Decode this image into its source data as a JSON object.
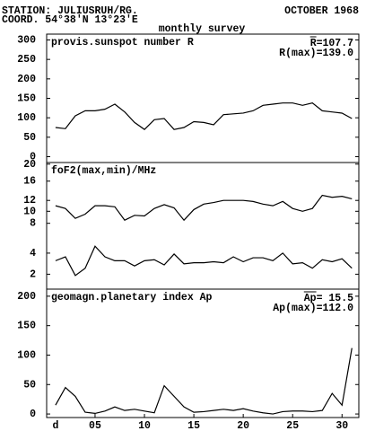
{
  "header": {
    "station": "STATION: JULIUSRUH/RG.",
    "coord": "COORD. 54°38'N 13°23'E",
    "month": "OCTOBER 1968",
    "survey": "monthly survey"
  },
  "chart_data": [
    {
      "type": "line",
      "title": "provis.sunspot number R",
      "annotations": [
        "R=107.7",
        "R(max)=139.0"
      ],
      "x": [
        1,
        2,
        3,
        4,
        5,
        6,
        7,
        8,
        9,
        10,
        11,
        12,
        13,
        14,
        15,
        16,
        17,
        18,
        19,
        20,
        21,
        22,
        23,
        24,
        25,
        26,
        27,
        28,
        29,
        30,
        31
      ],
      "xlim": [
        0.1,
        31.7
      ],
      "ylim": [
        -15,
        315
      ],
      "yticks": [
        0,
        50,
        100,
        150,
        200,
        250,
        300
      ],
      "scale": "linear",
      "series": [
        {
          "color": "#000000",
          "values": [
            75,
            72,
            105,
            118,
            118,
            122,
            135,
            115,
            88,
            70,
            95,
            98,
            70,
            75,
            90,
            88,
            82,
            108,
            110,
            112,
            118,
            132,
            135,
            138,
            138,
            132,
            138,
            118,
            115,
            112,
            98
          ]
        }
      ]
    },
    {
      "type": "line",
      "title": "foF2(max,min)/MHz",
      "annotations": [],
      "x": [
        1,
        2,
        3,
        4,
        5,
        6,
        7,
        8,
        9,
        10,
        11,
        12,
        13,
        14,
        15,
        16,
        17,
        18,
        19,
        20,
        21,
        22,
        23,
        24,
        25,
        26,
        27,
        28,
        29,
        30,
        31
      ],
      "xlim": [
        0.1,
        31.7
      ],
      "ylim": [
        1,
        20.4
      ],
      "yticks": [
        2,
        4,
        8,
        10,
        12,
        16,
        20
      ],
      "scale": "sqrt",
      "series": [
        {
          "color": "#000000",
          "values": [
            11,
            10.5,
            8.8,
            9.5,
            11,
            11,
            10.8,
            8.5,
            9.3,
            9.2,
            10.5,
            11.2,
            10.6,
            8.5,
            10.3,
            11.3,
            11.6,
            12,
            12,
            12,
            11.8,
            11.3,
            11,
            11.8,
            10.5,
            10,
            10.5,
            13,
            12.6,
            12.8,
            12.3
          ]
        },
        {
          "color": "#000000",
          "values": [
            3.2,
            3.6,
            1.9,
            2.5,
            4.8,
            3.6,
            3.2,
            3.2,
            2.7,
            3.2,
            3.3,
            2.8,
            3.9,
            2.9,
            3,
            3,
            3.1,
            3,
            3.6,
            3.1,
            3.5,
            3.5,
            3.2,
            4,
            2.9,
            3,
            2.5,
            3.3,
            3.1,
            3.4,
            2.5
          ]
        }
      ]
    },
    {
      "type": "line",
      "title": "geomagn.planetary index Ap",
      "annotations": [
        "Ap= 15.5",
        "Ap(max)=112.0"
      ],
      "x": [
        1,
        2,
        3,
        4,
        5,
        6,
        7,
        8,
        9,
        10,
        11,
        12,
        13,
        14,
        15,
        16,
        17,
        18,
        19,
        20,
        21,
        22,
        23,
        24,
        25,
        26,
        27,
        28,
        29,
        30,
        31
      ],
      "xlim": [
        0.1,
        31.7
      ],
      "ylim": [
        -6,
        212
      ],
      "yticks": [
        0,
        50,
        100,
        150,
        200
      ],
      "scale": "linear",
      "xlabel": "d",
      "xticks": [
        {
          "value": 5,
          "label": "05"
        },
        10,
        15,
        20,
        25,
        30
      ],
      "series": [
        {
          "color": "#000000",
          "values": [
            15,
            45,
            30,
            3,
            1,
            5,
            12,
            6,
            8,
            5,
            2,
            48,
            30,
            12,
            3,
            4,
            6,
            8,
            6,
            9,
            5,
            2,
            0,
            4,
            5,
            5,
            4,
            6,
            35,
            15,
            112
          ]
        }
      ]
    }
  ]
}
